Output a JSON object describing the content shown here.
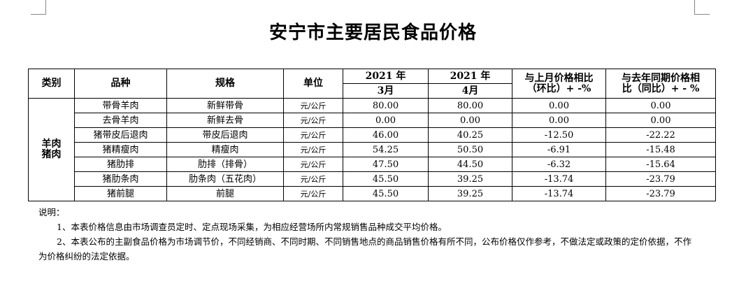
{
  "title": "安宁市主要居民食品价格",
  "table": {
    "header": {
      "category": "类别",
      "variety": "品种",
      "spec": "规格",
      "unit": "单位",
      "month1_year": "2021 年",
      "month1": "3月",
      "month2_year": "2021 年",
      "month2": "4月",
      "mom": [
        "与上月价格相比",
        "（环比）+ -%"
      ],
      "yoy": [
        "与去年同期价格相",
        "比（同比）+ - %"
      ]
    },
    "group": [
      "羊肉",
      "猪肉"
    ],
    "rows": [
      [
        "带骨羊肉",
        "新鲜带骨",
        "元/公斤",
        "80.00",
        "80.00",
        "0.00",
        "0.00"
      ],
      [
        "去骨羊肉",
        "新鲜去骨",
        "元/公斤",
        "0.00",
        "0.00",
        "0.00",
        "0.00"
      ],
      [
        "猪带皮后退肉",
        "带皮后退肉",
        "元/公斤",
        "46.00",
        "40.25",
        "-12.50",
        "-22.22"
      ],
      [
        "猪精瘦肉",
        "精瘦肉",
        "元/公斤",
        "54.25",
        "50.50",
        "-6.91",
        "-15.48"
      ],
      [
        "猪肋排",
        "肋排（排骨）",
        "元/公斤",
        "47.50",
        "44.50",
        "-6.32",
        "-15.64"
      ],
      [
        "猪肋条肉",
        "肋条肉（五花肉）",
        "元/公斤",
        "45.50",
        "39.25",
        "-13.74",
        "-23.79"
      ],
      [
        "猪前腿",
        "前腿",
        "元/公斤",
        "45.50",
        "39.25",
        "-13.74",
        "-23.79"
      ]
    ]
  },
  "notes": {
    "heading": "说明：",
    "items": [
      "1、本表价格信息由市场调查员定时、定点现场采集，为相应经营场所内常规销售品种成交平均价格。",
      "2、本表公布的主副食品价格为市场调节价，不同经销商、不同时期、不同销售地点的商品销售价格有所不同，公布价格仅作参考，不做法定或政策的定价依据，不作为价格纠纷的法定依据。"
    ]
  }
}
